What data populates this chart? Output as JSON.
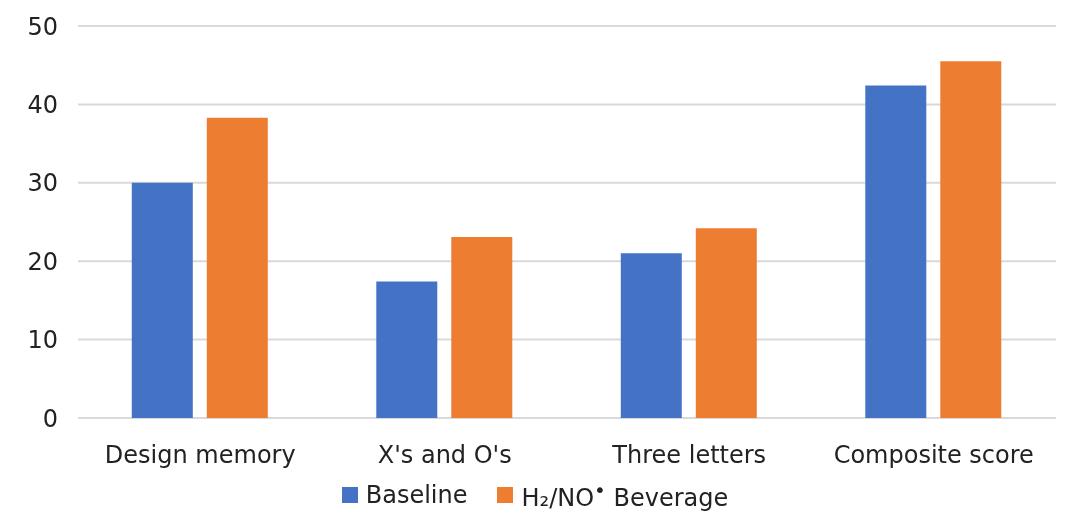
{
  "chart_data": {
    "type": "bar",
    "categories": [
      "Design memory",
      "X's and O's",
      "Three letters",
      "Composite score"
    ],
    "series": [
      {
        "name": "Baseline",
        "color": "#4472c4",
        "values": [
          30.0,
          17.4,
          21.0,
          42.4
        ]
      },
      {
        "name": "H₂/NO$^{•}$ Beverage",
        "color": "#ed7d31",
        "values": [
          38.3,
          23.1,
          24.2,
          45.5
        ]
      }
    ],
    "ylim": [
      0,
      50
    ],
    "yticks": [
      0,
      10,
      20,
      30,
      40,
      50
    ],
    "grid": "y",
    "legend": "bottom"
  }
}
